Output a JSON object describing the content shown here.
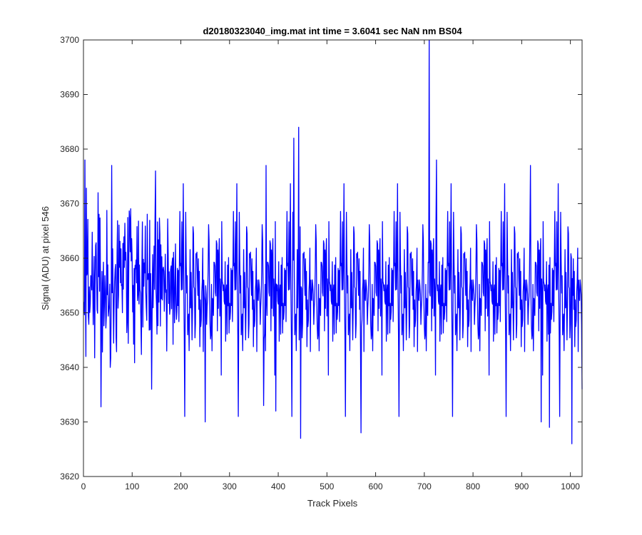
{
  "chart_data": {
    "type": "line",
    "title": "d20180323040_img.mat int time = 3.6041 sec  NaN nm BS04",
    "xlabel": "Track Pixels",
    "ylabel": "Signal (ADU) at pixel 546",
    "xlim": [
      0,
      1024
    ],
    "ylim": [
      3620,
      3700
    ],
    "x_ticks": [
      0,
      100,
      200,
      300,
      400,
      500,
      600,
      700,
      800,
      900,
      1000
    ],
    "y_ticks": [
      3620,
      3630,
      3640,
      3650,
      3660,
      3670,
      3680,
      3690,
      3700
    ],
    "grid": false,
    "legend": "none",
    "series_color": "#0000ff",
    "series": [
      {
        "x_start": 1,
        "x_step": 1,
        "n_points": 1024,
        "mean": 3655,
        "std": 7,
        "values_sampled": [
          {
            "x": 1,
            "y": 3652
          },
          {
            "x": 3,
            "y": 3678
          },
          {
            "x": 5,
            "y": 3642
          },
          {
            "x": 30,
            "y": 3672
          },
          {
            "x": 55,
            "y": 3640
          },
          {
            "x": 58,
            "y": 3677
          },
          {
            "x": 140,
            "y": 3636
          },
          {
            "x": 148,
            "y": 3676
          },
          {
            "x": 250,
            "y": 3630
          },
          {
            "x": 370,
            "y": 3633
          },
          {
            "x": 375,
            "y": 3677
          },
          {
            "x": 395,
            "y": 3632
          },
          {
            "x": 432,
            "y": 3682
          },
          {
            "x": 442,
            "y": 3684
          },
          {
            "x": 446,
            "y": 3627
          },
          {
            "x": 570,
            "y": 3628
          },
          {
            "x": 710,
            "y": 3700
          },
          {
            "x": 725,
            "y": 3678
          },
          {
            "x": 918,
            "y": 3677
          },
          {
            "x": 940,
            "y": 3630
          },
          {
            "x": 957,
            "y": 3629
          },
          {
            "x": 1003,
            "y": 3626
          },
          {
            "x": 1024,
            "y": 3636
          }
        ]
      }
    ]
  }
}
